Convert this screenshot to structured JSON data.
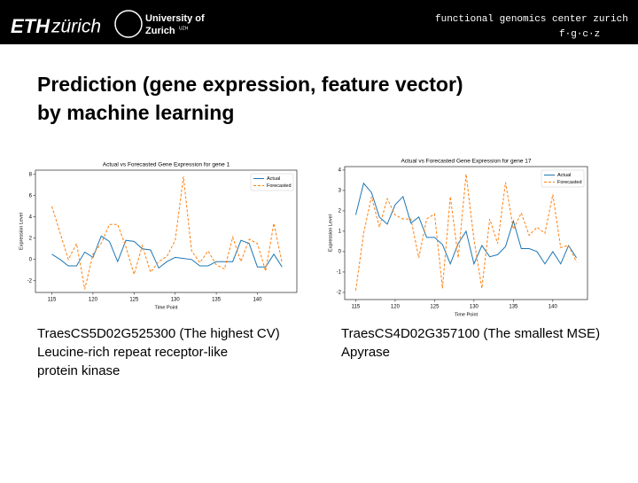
{
  "header": {
    "eth": "ETH",
    "zurich": "zürich",
    "uzh_line1": "University of",
    "uzh_line2": "Zurich",
    "uzh_mark": "UZH",
    "fgcz": "functional genomics center zurich",
    "fgcz_short": "f·g·c·z"
  },
  "slide": {
    "title_lines": [
      "Prediction (gene expression, feature vector)",
      "by machine learning"
    ],
    "captions": [
      [
        "TraesCS5D02G525300 (The highest CV)",
        "Leucine-rich repeat receptor-like",
        "protein kinase"
      ],
      [
        "TraesCS4D02G357100 (The smallest MSE)",
        "Apyrase"
      ]
    ]
  },
  "chart_data": [
    {
      "type": "line",
      "title": "Actual vs Forecasted Gene Expression for gene 1",
      "x_label": "Time Point",
      "y_label": "Expression Level",
      "x": [
        115,
        116,
        117,
        118,
        119,
        120,
        121,
        122,
        123,
        124,
        125,
        126,
        127,
        128,
        129,
        130,
        131,
        132,
        133,
        134,
        135,
        136,
        137,
        138,
        139,
        140,
        141,
        142,
        143
      ],
      "series": [
        {
          "name": "Actual",
          "color": "#1f77b4",
          "linestyle": "solid",
          "values": [
            0.5,
            0,
            -0.6,
            -0.6,
            0.7,
            0.2,
            2.2,
            1.7,
            -0.2,
            1.8,
            1.7,
            1.0,
            0.9,
            -0.8,
            -0.2,
            0.2,
            0.1,
            0.0,
            -0.6,
            -0.6,
            -0.2,
            -0.2,
            -0.2,
            1.8,
            1.5,
            -0.7,
            -0.7,
            0.5,
            -0.7
          ]
        },
        {
          "name": "Forecasted",
          "color": "#ff7f0e",
          "linestyle": "dashed",
          "values": [
            5.0,
            2.5,
            0.0,
            1.5,
            -2.8,
            0.5,
            1.5,
            3.3,
            3.3,
            1.2,
            -1.4,
            1.3,
            -1.2,
            -0.2,
            0.3,
            1.8,
            7.8,
            0.8,
            -0.3,
            0.8,
            -0.5,
            -0.9,
            2.1,
            -0.2,
            1.9,
            1.5,
            -1.1,
            3.4,
            -0.3
          ]
        }
      ],
      "xlim": [
        113,
        144.8
      ],
      "xticks": [
        115,
        120,
        125,
        130,
        135,
        140
      ],
      "ylim": [
        -3.1,
        8.4
      ],
      "yticks": [
        -2,
        0,
        2,
        4,
        6,
        8
      ],
      "legend": "upper right"
    },
    {
      "type": "line",
      "title": "Actual vs Forecasted Gene Expression for gene 17",
      "x_label": "Time Point",
      "y_label": "Expression Level",
      "x": [
        115,
        116,
        117,
        118,
        119,
        120,
        121,
        122,
        123,
        124,
        125,
        126,
        127,
        128,
        129,
        130,
        131,
        132,
        133,
        134,
        135,
        136,
        137,
        138,
        139,
        140,
        141,
        142,
        143
      ],
      "series": [
        {
          "name": "Actual",
          "color": "#1f77b4",
          "linestyle": "solid",
          "values": [
            1.8,
            3.35,
            2.9,
            1.7,
            1.35,
            2.3,
            2.7,
            1.4,
            1.7,
            0.7,
            0.7,
            0.35,
            -0.6,
            0.4,
            1.0,
            -0.6,
            0.3,
            -0.25,
            -0.15,
            0.25,
            1.5,
            0.15,
            0.15,
            0.0,
            -0.6,
            0.0,
            -0.6,
            0.3,
            -0.3
          ]
        },
        {
          "name": "Forecasted",
          "color": "#ff7f0e",
          "linestyle": "dashed",
          "values": [
            -1.9,
            0.9,
            2.7,
            1.2,
            2.6,
            1.8,
            1.6,
            1.6,
            -0.3,
            1.6,
            1.85,
            -1.8,
            2.7,
            -0.3,
            3.8,
            0.6,
            -1.8,
            1.6,
            0.4,
            3.4,
            1.1,
            1.9,
            0.8,
            1.2,
            0.9,
            2.8,
            0.2,
            0.3,
            -0.5
          ]
        }
      ],
      "xlim": [
        113.6,
        144.4
      ],
      "xticks": [
        115,
        120,
        125,
        130,
        135,
        140
      ],
      "ylim": [
        -2.35,
        4.17
      ],
      "yticks": [
        -2,
        -1,
        0,
        1,
        2,
        3,
        4
      ],
      "legend": "upper right"
    }
  ]
}
